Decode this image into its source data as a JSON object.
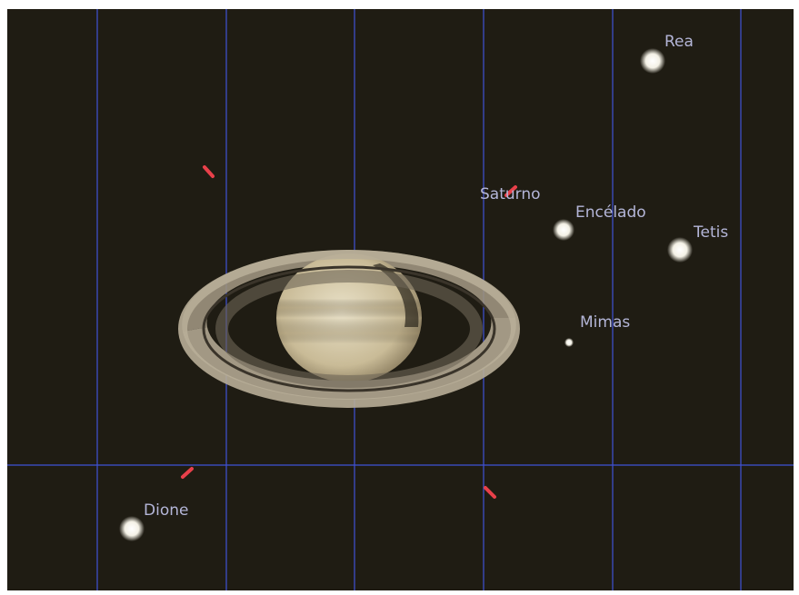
{
  "labels": {
    "rea": "Rea",
    "saturno": "Saturno",
    "encelado": "Encélado",
    "tetis": "Tetis",
    "mimas": "Mimas",
    "dione": "Dione"
  }
}
